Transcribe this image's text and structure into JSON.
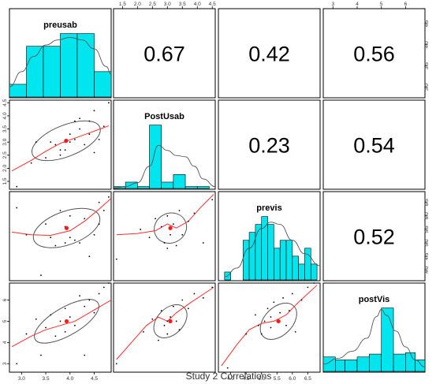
{
  "caption": "Study 2 Correlations",
  "variables": [
    "preusab",
    "PostUsab",
    "previs",
    "postVis"
  ],
  "chart_data": {
    "type": "scatter",
    "title": "Study 2 Correlations",
    "plot_kind": "pairs-panels matrix (histograms with density on diagonal, scatterplots with loess fit and correlation ellipse below, correlation coefficients above)",
    "colors": {
      "histogram": "#00e5ee",
      "fit": "#ff2a2a",
      "centroid": "#ff1a1a",
      "frame": "#000000",
      "ellipse": "#555555"
    },
    "axes": {
      "preusab": {
        "range": [
          2.75,
          4.85
        ],
        "ticks": [
          "3.0",
          "3.5",
          "4.0",
          "4.5"
        ]
      },
      "PostUsab": {
        "range": [
          1.2,
          4.6
        ],
        "ticks": [
          "1.5",
          "2.0",
          "2.5",
          "3.0",
          "3.5",
          "4.0",
          "4.5"
        ]
      },
      "previs": {
        "range": [
          3.6,
          6.9
        ],
        "ticks": [
          "4.0",
          "4.5",
          "5.0",
          "5.5",
          "6.0",
          "6.5"
        ]
      },
      "postVis": {
        "range": [
          2.6,
          6.8
        ],
        "ticks": [
          "3",
          "4",
          "5",
          "6"
        ]
      }
    },
    "top_axis_labels": {
      "col2": [
        "1.5",
        "2.0",
        "2.5",
        "3.0",
        "3.5",
        "4.0",
        "4.5"
      ],
      "col4": [
        "3",
        "4",
        "5",
        "6"
      ]
    },
    "right_axis_labels": {
      "row1": [
        "3.0",
        "3.5",
        "4.0",
        "4.5"
      ],
      "row3": [
        "4.0",
        "4.5",
        "5.0",
        "5.5",
        "6.0",
        "6.5"
      ]
    },
    "left_axis_labels": {
      "row2": [
        "1.5",
        "2.0",
        "2.5",
        "3.0",
        "3.5",
        "4.0",
        "4.5"
      ],
      "row4": [
        "3",
        "4",
        "5",
        "6"
      ]
    },
    "bottom_axis_labels": {
      "col1": [
        "3.0",
        "3.5",
        "4.0",
        "4.5"
      ],
      "col3": [
        "4.0",
        "4.5",
        "5.0",
        "5.5",
        "6.0",
        "6.5"
      ]
    },
    "correlations": [
      {
        "row": 0,
        "col": 1,
        "value": "0.67"
      },
      {
        "row": 0,
        "col": 2,
        "value": "0.42"
      },
      {
        "row": 0,
        "col": 3,
        "value": "0.56"
      },
      {
        "row": 1,
        "col": 2,
        "value": "0.23"
      },
      {
        "row": 1,
        "col": 3,
        "value": "0.54"
      },
      {
        "row": 2,
        "col": 3,
        "value": "0.52"
      }
    ],
    "histograms": [
      {
        "variable": "preusab",
        "bins": [
          2.75,
          3.1,
          3.45,
          3.8,
          4.15,
          4.5,
          4.85
        ],
        "counts": [
          1,
          4,
          4,
          5,
          5,
          2
        ]
      },
      {
        "variable": "PostUsab",
        "bins": [
          1.2,
          1.6,
          2.0,
          2.4,
          2.8,
          3.2,
          3.6,
          4.0,
          4.4
        ],
        "counts": [
          0.3,
          1,
          0.3,
          10,
          1,
          2.2,
          0.3,
          0.3
        ]
      },
      {
        "variable": "previs",
        "bins": [
          3.8,
          4.0,
          4.4,
          4.6,
          4.8,
          5.0,
          5.2,
          5.4,
          5.6,
          5.8,
          6.0,
          6.2,
          6.4,
          6.6,
          6.8
        ],
        "counts": [
          1,
          0,
          5,
          6,
          7,
          8,
          7,
          4,
          5,
          5,
          3,
          2,
          4,
          2
        ]
      },
      {
        "variable": "postVis",
        "bins": [
          2.6,
          3.1,
          3.5,
          4.0,
          4.5,
          5.0,
          5.5,
          6.0,
          6.4,
          6.8
        ],
        "counts": [
          1,
          0.8,
          0.8,
          1,
          1.2,
          4.4,
          1.2,
          1.3,
          0.8
        ]
      }
    ],
    "densities": [
      {
        "variable": "preusab",
        "x": [
          2.75,
          3.0,
          3.25,
          3.5,
          3.75,
          4.0,
          4.25,
          4.5,
          4.75,
          4.85
        ],
        "y": [
          0.8,
          2.0,
          3.2,
          4.1,
          4.5,
          4.7,
          4.5,
          3.8,
          2.4,
          1.8
        ]
      },
      {
        "variable": "PostUsab",
        "x": [
          1.2,
          1.6,
          2.0,
          2.4,
          2.7,
          3.0,
          3.3,
          3.6,
          3.9,
          4.2,
          4.6
        ],
        "y": [
          0.1,
          0.3,
          0.9,
          3.5,
          6.8,
          6.0,
          5.2,
          5.0,
          3.5,
          1.5,
          0.3
        ]
      },
      {
        "variable": "previs",
        "x": [
          3.8,
          4.2,
          4.6,
          5.0,
          5.3,
          5.6,
          6.0,
          6.4,
          6.9
        ],
        "y": [
          0.4,
          1.5,
          4.0,
          6.5,
          7.3,
          7.0,
          5.0,
          3.3,
          1.8
        ]
      },
      {
        "variable": "postVis",
        "x": [
          2.6,
          3.2,
          3.8,
          4.4,
          4.8,
          5.0,
          5.2,
          5.6,
          6.0,
          6.4,
          6.8
        ],
        "y": [
          0.5,
          0.9,
          1.4,
          2.3,
          3.8,
          4.3,
          3.9,
          2.8,
          1.7,
          0.8,
          0.3
        ]
      }
    ],
    "scatter_panels": [
      {
        "row": 1,
        "col": 0,
        "x_var": "preusab",
        "y_var": "PostUsab",
        "points": [
          [
            2.9,
            1.3
          ],
          [
            3.2,
            2.2
          ],
          [
            3.3,
            3.0
          ],
          [
            3.5,
            2.4
          ],
          [
            3.6,
            3.0
          ],
          [
            3.7,
            2.9
          ],
          [
            3.8,
            2.5
          ],
          [
            3.8,
            2.7
          ],
          [
            3.9,
            3.0
          ],
          [
            3.9,
            2.7
          ],
          [
            4.0,
            3.0
          ],
          [
            4.0,
            3.3
          ],
          [
            4.1,
            3.1
          ],
          [
            4.1,
            3.8
          ],
          [
            4.2,
            3.5
          ],
          [
            4.2,
            3.9
          ],
          [
            4.3,
            2.9
          ],
          [
            4.4,
            3.3
          ],
          [
            4.4,
            3.8
          ],
          [
            4.5,
            2.6
          ],
          [
            4.5,
            4.2
          ],
          [
            4.6,
            3.1
          ],
          [
            4.7,
            3.6
          ],
          [
            4.8,
            4.5
          ]
        ],
        "centroid": [
          3.92,
          3.05
        ],
        "fit": [
          [
            2.8,
            1.9
          ],
          [
            3.2,
            2.3
          ],
          [
            3.5,
            2.65
          ],
          [
            3.8,
            2.95
          ],
          [
            4.1,
            3.15
          ],
          [
            4.4,
            3.35
          ],
          [
            4.8,
            3.62
          ]
        ],
        "ellipse": {
          "cx": 3.92,
          "cy": 3.05,
          "rx": 0.75,
          "ry": 0.27,
          "angle": -22
        }
      },
      {
        "row": 2,
        "col": 0,
        "x_var": "preusab",
        "y_var": "previs",
        "points": [
          [
            2.9,
            6.3
          ],
          [
            3.1,
            5.3
          ],
          [
            3.4,
            3.8
          ],
          [
            3.5,
            5.7
          ],
          [
            3.6,
            5.2
          ],
          [
            3.7,
            4.9
          ],
          [
            3.8,
            6.2
          ],
          [
            3.9,
            5.6
          ],
          [
            3.9,
            5.0
          ],
          [
            4.0,
            5.2
          ],
          [
            4.0,
            6.0
          ],
          [
            4.1,
            5.1
          ],
          [
            4.2,
            5.0
          ],
          [
            4.3,
            5.9
          ],
          [
            4.4,
            4.5
          ],
          [
            4.5,
            5.3
          ],
          [
            4.6,
            6.5
          ],
          [
            4.6,
            5.7
          ],
          [
            4.7,
            6.2
          ],
          [
            4.8,
            6.7
          ]
        ],
        "centroid": [
          3.93,
          5.55
        ],
        "fit": [
          [
            2.8,
            5.4
          ],
          [
            3.2,
            5.3
          ],
          [
            3.6,
            5.28
          ],
          [
            4.0,
            5.45
          ],
          [
            4.3,
            5.8
          ],
          [
            4.6,
            6.25
          ],
          [
            4.85,
            6.65
          ]
        ],
        "ellipse": {
          "cx": 3.93,
          "cy": 5.55,
          "rx": 0.72,
          "ry": 0.28,
          "angle": -20
        }
      },
      {
        "row": 3,
        "col": 0,
        "x_var": "preusab",
        "y_var": "postVis",
        "points": [
          [
            2.9,
            3.0
          ],
          [
            3.1,
            4.4
          ],
          [
            3.3,
            5.1
          ],
          [
            3.4,
            3.4
          ],
          [
            3.5,
            4.7
          ],
          [
            3.6,
            5.3
          ],
          [
            3.7,
            4.3
          ],
          [
            3.8,
            5.0
          ],
          [
            3.9,
            5.6
          ],
          [
            3.9,
            4.5
          ],
          [
            4.0,
            5.2
          ],
          [
            4.1,
            4.8
          ],
          [
            4.2,
            6.2
          ],
          [
            4.3,
            5.7
          ],
          [
            4.3,
            3.4
          ],
          [
            4.4,
            6.0
          ],
          [
            4.5,
            5.4
          ],
          [
            4.6,
            6.3
          ],
          [
            4.7,
            6.6
          ],
          [
            4.8,
            6.8
          ]
        ],
        "centroid": [
          3.93,
          5.0
        ],
        "fit": [
          [
            2.8,
            3.8
          ],
          [
            3.2,
            4.3
          ],
          [
            3.5,
            4.6
          ],
          [
            3.8,
            4.8
          ],
          [
            4.1,
            5.0
          ],
          [
            4.4,
            5.4
          ],
          [
            4.85,
            6.0
          ]
        ],
        "ellipse": {
          "cx": 3.93,
          "cy": 5.0,
          "rx": 0.75,
          "ry": 0.3,
          "angle": -30
        }
      },
      {
        "row": 2,
        "col": 1,
        "x_var": "PostUsab",
        "y_var": "previs",
        "points": [
          [
            1.3,
            4.4
          ],
          [
            2.1,
            5.5
          ],
          [
            2.4,
            5.2
          ],
          [
            2.6,
            5.9
          ],
          [
            2.8,
            5.6
          ],
          [
            2.9,
            5.0
          ],
          [
            3.0,
            6.0
          ],
          [
            3.0,
            4.8
          ],
          [
            3.1,
            5.3
          ],
          [
            3.2,
            5.7
          ],
          [
            3.3,
            4.9
          ],
          [
            3.4,
            6.2
          ],
          [
            3.5,
            5.3
          ],
          [
            3.7,
            5.8
          ],
          [
            3.9,
            6.1
          ],
          [
            4.2,
            5.0
          ],
          [
            4.5,
            6.6
          ]
        ],
        "centroid": [
          3.1,
          5.55
        ],
        "fit": [
          [
            1.3,
            5.3
          ],
          [
            2.0,
            5.35
          ],
          [
            2.6,
            5.45
          ],
          [
            3.0,
            5.7
          ],
          [
            3.3,
            5.55
          ],
          [
            3.7,
            5.8
          ],
          [
            4.1,
            6.3
          ],
          [
            4.55,
            6.8
          ]
        ],
        "ellipse": {
          "cx": 3.1,
          "cy": 5.55,
          "rx": 0.55,
          "ry": 0.25,
          "angle": -25
        }
      },
      {
        "row": 3,
        "col": 1,
        "x_var": "PostUsab",
        "y_var": "postVis",
        "points": [
          [
            1.3,
            3.0
          ],
          [
            2.2,
            4.5
          ],
          [
            2.5,
            5.1
          ],
          [
            2.7,
            4.1
          ],
          [
            2.8,
            5.5
          ],
          [
            2.9,
            4.8
          ],
          [
            3.0,
            5.0
          ],
          [
            3.0,
            4.4
          ],
          [
            3.1,
            5.2
          ],
          [
            3.2,
            5.7
          ],
          [
            3.3,
            5.0
          ],
          [
            3.4,
            4.6
          ],
          [
            3.5,
            6.0
          ],
          [
            3.7,
            5.6
          ],
          [
            3.9,
            6.3
          ],
          [
            4.2,
            6.1
          ],
          [
            4.5,
            6.6
          ]
        ],
        "centroid": [
          3.1,
          5.0
        ],
        "fit": [
          [
            1.3,
            3.2
          ],
          [
            1.8,
            4.0
          ],
          [
            2.3,
            4.8
          ],
          [
            2.7,
            5.2
          ],
          [
            3.0,
            5.0
          ],
          [
            3.3,
            5.4
          ],
          [
            3.8,
            5.9
          ],
          [
            4.55,
            6.6
          ]
        ],
        "ellipse": {
          "cx": 3.1,
          "cy": 5.0,
          "rx": 0.65,
          "ry": 0.28,
          "angle": -45
        }
      },
      {
        "row": 3,
        "col": 2,
        "x_var": "previs",
        "y_var": "postVis",
        "points": [
          [
            3.9,
            2.8
          ],
          [
            4.5,
            4.4
          ],
          [
            4.8,
            5.3
          ],
          [
            4.9,
            4.8
          ],
          [
            5.0,
            4.4
          ],
          [
            5.1,
            5.0
          ],
          [
            5.2,
            5.6
          ],
          [
            5.3,
            5.2
          ],
          [
            5.3,
            4.7
          ],
          [
            5.4,
            5.9
          ],
          [
            5.5,
            5.0
          ],
          [
            5.6,
            5.4
          ],
          [
            5.7,
            6.1
          ],
          [
            5.8,
            4.8
          ],
          [
            5.9,
            5.5
          ],
          [
            6.0,
            6.3
          ],
          [
            6.1,
            4.5
          ],
          [
            6.3,
            6.0
          ],
          [
            6.5,
            6.6
          ],
          [
            6.7,
            6.8
          ]
        ],
        "centroid": [
          5.55,
          5.0
        ],
        "fit": [
          [
            3.7,
            2.9
          ],
          [
            4.2,
            3.9
          ],
          [
            4.6,
            4.6
          ],
          [
            5.0,
            4.9
          ],
          [
            5.4,
            5.0
          ],
          [
            5.8,
            5.3
          ],
          [
            6.2,
            5.9
          ],
          [
            6.8,
            6.7
          ]
        ],
        "ellipse": {
          "cx": 5.55,
          "cy": 5.0,
          "rx": 0.7,
          "ry": 0.3,
          "angle": -45
        }
      }
    ]
  }
}
